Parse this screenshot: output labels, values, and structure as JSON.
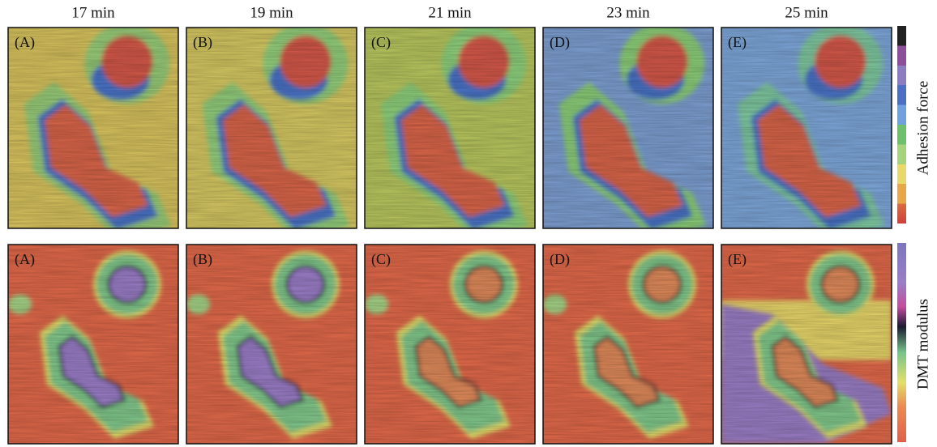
{
  "columns": [
    "17 min",
    "19 min",
    "21 min",
    "23 min",
    "25 min"
  ],
  "rows": [
    {
      "colorbar_label": "Adhesion force",
      "panels": [
        "(A)",
        "(B)",
        "(C)",
        "(D)",
        "(E)"
      ]
    },
    {
      "colorbar_label": "DMT modulus",
      "panels": [
        "(A)",
        "(B)",
        "(C)",
        "(D)",
        "(E)"
      ]
    }
  ]
}
